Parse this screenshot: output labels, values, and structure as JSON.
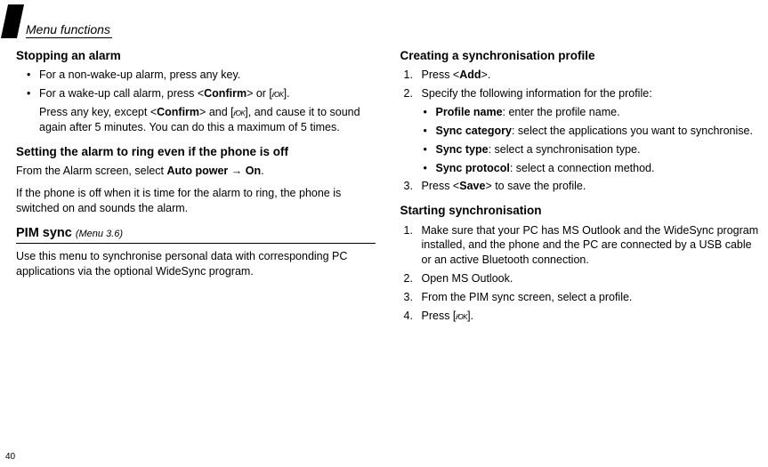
{
  "header": {
    "title": "Menu functions"
  },
  "left": {
    "stopping": {
      "heading": "Stopping an alarm",
      "b1": "For a non-wake-up alarm, press any key.",
      "b2a": "For a wake-up call alarm, press <",
      "b2b": "Confirm",
      "b2c": "> or [",
      "b2d": "].",
      "b3a": "Press any key, except <",
      "b3b": "Confirm",
      "b3c": "> and [",
      "b3d": "], and cause it to sound again after 5 minutes. You can do this a maximum of 5 times."
    },
    "setting": {
      "heading": "Setting the alarm to ring even if the phone is off",
      "p1a": "From the Alarm screen, select ",
      "p1b": "Auto power",
      "p1c": " → ",
      "p1d": "On",
      "p1e": ".",
      "p2": "If the phone is off when it is time for the alarm to ring, the phone is switched on and sounds the alarm."
    },
    "pim": {
      "title": "PIM sync",
      "menu": "(Menu 3.6)",
      "p": "Use this menu to synchronise personal data with corresponding PC applications via the optional WideSync program."
    }
  },
  "right": {
    "creating": {
      "heading": "Creating a synchronisation profile",
      "n1a": "Press <",
      "n1b": "Add",
      "n1c": ">.",
      "n2": "Specify the following information for the profile:",
      "s1a": "Profile name",
      "s1b": ": enter the profile name.",
      "s2a": "Sync category",
      "s2b": ": select the applications you want to synchronise.",
      "s3a": "Sync type",
      "s3b": ": select a synchronisation type.",
      "s4a": "Sync protocol",
      "s4b": ": select a connection method.",
      "n3a": "Press <",
      "n3b": "Save",
      "n3c": "> to save the profile."
    },
    "starting": {
      "heading": "Starting synchronisation",
      "n1": "Make sure that your PC has MS Outlook and the WideSync program installed, and the phone and the PC are connected by a USB cable or an active Bluetooth connection.",
      "n2": "Open MS Outlook.",
      "n3": "From the PIM sync screen, select a profile.",
      "n4a": "Press [",
      "n4b": "]."
    }
  },
  "icon": "i⁄OK",
  "pageNum": "40"
}
